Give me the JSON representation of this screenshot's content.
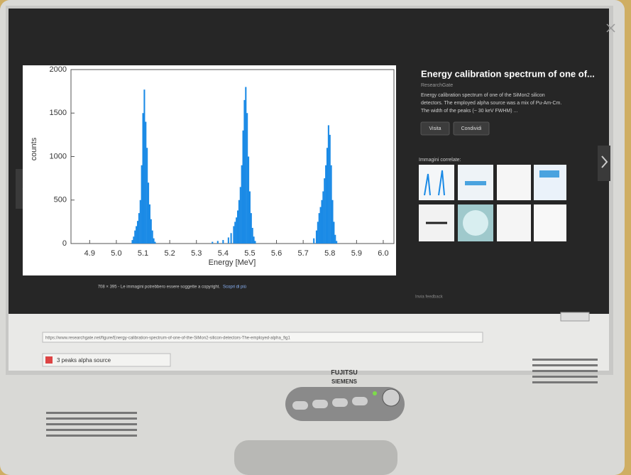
{
  "chart_data": {
    "type": "bar",
    "x": [
      5.06,
      5.065,
      5.07,
      5.075,
      5.08,
      5.085,
      5.09,
      5.095,
      5.1,
      5.105,
      5.11,
      5.115,
      5.12,
      5.125,
      5.13,
      5.135,
      5.14,
      5.145,
      5.36,
      5.38,
      5.4,
      5.42,
      5.43,
      5.44,
      5.445,
      5.45,
      5.455,
      5.46,
      5.465,
      5.47,
      5.475,
      5.48,
      5.485,
      5.49,
      5.495,
      5.5,
      5.505,
      5.51,
      5.515,
      5.52,
      5.74,
      5.75,
      5.755,
      5.76,
      5.765,
      5.77,
      5.775,
      5.78,
      5.785,
      5.79,
      5.795,
      5.8,
      5.805,
      5.81,
      5.815,
      5.82,
      5.825
    ],
    "values": [
      40,
      80,
      150,
      200,
      260,
      350,
      500,
      900,
      1500,
      1770,
      1400,
      1100,
      700,
      450,
      280,
      150,
      60,
      20,
      20,
      30,
      40,
      70,
      120,
      200,
      250,
      300,
      380,
      500,
      650,
      900,
      1300,
      1650,
      1800,
      1500,
      1000,
      600,
      350,
      180,
      80,
      30,
      60,
      150,
      250,
      350,
      420,
      500,
      600,
      750,
      900,
      1100,
      1360,
      1250,
      900,
      500,
      250,
      100,
      30
    ],
    "color": "#1a8ae6",
    "xlim": [
      4.83,
      6.04
    ],
    "ylim": [
      0,
      2000
    ],
    "xticks": [
      4.9,
      {
        "value": 5,
        "label": "5.0"
      },
      5.1,
      5.2,
      5.3,
      5.4,
      5.5,
      5.6,
      5.7,
      5.8,
      5.9,
      {
        "value": 6,
        "label": "6.0"
      }
    ],
    "yticks": [
      0,
      500,
      1000,
      1500,
      2000
    ],
    "xlabel": "Energy [MeV]",
    "ylabel": "counts"
  },
  "image_info": "708 × 395 - Le immagini potrebbero essere soggette a copyright.",
  "image_info_link": "Scopri di più",
  "panel": {
    "title": "Energy calibration spectrum of one of...",
    "source": "ResearchGate",
    "description": [
      "Energy calibration spectrum of one of the SiMon2 silicon",
      "detectors. The employed alpha source was a mix of Pu-Am-Cm.",
      "The width of the peaks (~ 30 keV FWHM) ..."
    ],
    "buttons": [
      "Visita",
      "Condividi"
    ],
    "related_heading": "Immagini correlate:",
    "footer": "Invia feedback"
  },
  "status_url": "https://www.researchgate.net/figure/Energy-calibration-spectrum-of-one-of-the-SiMon2-silicon-detectors-The-employed-alpha_fig1",
  "tab_title": "3 peaks alpha source",
  "brand": [
    "FUJITSU",
    "SIEMENS"
  ]
}
